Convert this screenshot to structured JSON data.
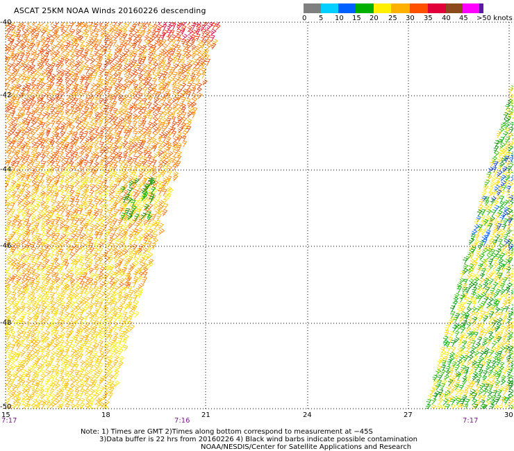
{
  "title": "ASCAT 25KM NOAA Winds 20160226 descending",
  "legend": {
    "labels": [
      "0",
      "5",
      "10",
      "15",
      "20",
      "25",
      "30",
      "35",
      "40",
      "45",
      ">50 knots"
    ],
    "colors": [
      "#7f7f7f",
      "#00cfff",
      "#0060ff",
      "#00b000",
      "#ffef00",
      "#ffb000",
      "#ff5000",
      "#e0003a",
      "#8a4a1a",
      "#ff00ff",
      "#5a1aa0"
    ]
  },
  "axes": {
    "lat_labels": [
      "-40",
      "-42",
      "-44",
      "-46",
      "-48",
      "-50"
    ],
    "lon_labels": [
      "15",
      "18",
      "21",
      "24",
      "27",
      "30"
    ]
  },
  "times": [
    "7:17",
    "7:16",
    "7:17"
  ],
  "notes": [
    "Note: 1) Times are GMT 2)Times along bottom correspond to measurement at −45S",
    "3)Data buffer is 22 hrs from 20160226 4) Black wind barbs indicate possible contamination",
    "NOAA/NESDIS/Center for Satellite Applications and Research"
  ]
}
